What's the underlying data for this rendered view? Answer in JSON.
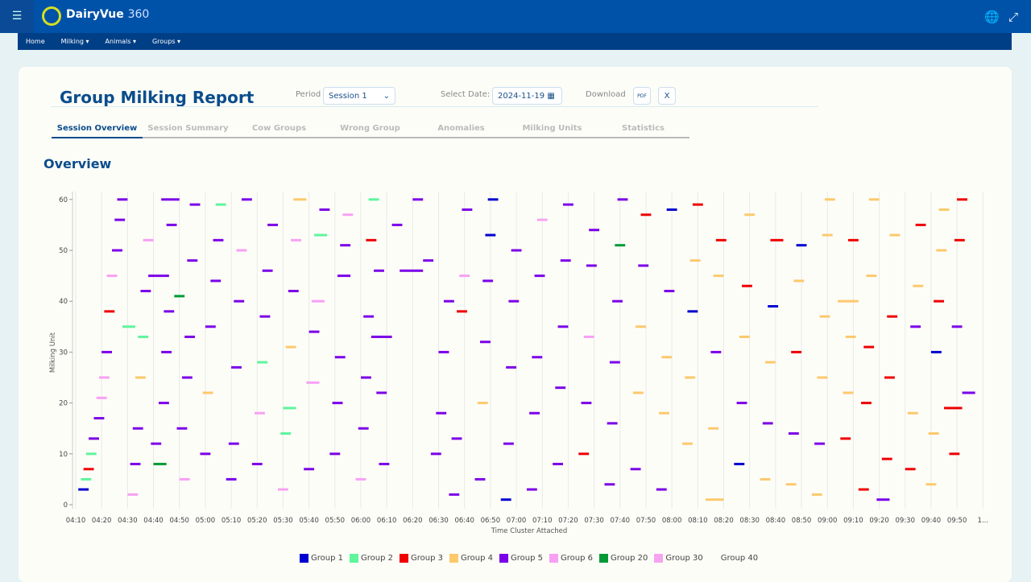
{
  "app": {
    "name": "DairyVue",
    "version": "360"
  },
  "nav": [
    "Home",
    "Milking ▾",
    "Animals ▾",
    "Groups ▾"
  ],
  "page": {
    "title": "Group Milking Report",
    "period_label": "Period",
    "period_value": "Session 1",
    "date_label": "Select Date:",
    "date_value": "2024-11-19",
    "download_label": "Download",
    "pdf": "PDF",
    "excel": "X"
  },
  "tabs": [
    "Session Overview",
    "Session Summary",
    "Cow Groups",
    "Wrong Group",
    "Anomalies",
    "Milking Units",
    "Statistics"
  ],
  "section": "Overview",
  "chart_data": {
    "type": "bar",
    "subtype": "gantt",
    "xlabel": "Time Cluster Attached",
    "ylabel": "Milking Unit",
    "xlim": [
      "04:10",
      "10:00"
    ],
    "ylim": [
      0,
      62
    ],
    "xticks": [
      "04:10",
      "04:20",
      "04:30",
      "04:40",
      "04:50",
      "05:00",
      "05:10",
      "05:20",
      "05:30",
      "05:40",
      "05:50",
      "06:00",
      "06:10",
      "06:20",
      "06:30",
      "06:40",
      "06:50",
      "07:00",
      "07:10",
      "07:20",
      "07:30",
      "07:40",
      "07:50",
      "08:00",
      "08:10",
      "08:20",
      "08:30",
      "08:40",
      "08:50",
      "09:00",
      "09:10",
      "09:20",
      "09:30",
      "09:40",
      "09:50",
      "1..."
    ],
    "yticks": [
      0,
      10,
      20,
      30,
      40,
      50,
      60
    ],
    "grid": "vertical",
    "legend_position": "bottom",
    "groups": [
      {
        "name": "Group 1",
        "color": "#0000d0"
      },
      {
        "name": "Group 2",
        "color": "#5ef59c"
      },
      {
        "name": "Group 3",
        "color": "#ee0000"
      },
      {
        "name": "Group 4",
        "color": "#fcc96c"
      },
      {
        "name": "Group 5",
        "color": "#7b00e8"
      },
      {
        "name": "Group 6",
        "color": "#f8a0f4"
      },
      {
        "name": "Group 20",
        "color": "#009a35"
      },
      {
        "name": "Group 30",
        "color": "#f6a4f0"
      },
      {
        "name": "Group 40",
        "color": ""
      }
    ],
    "segments_format": [
      "start",
      "end",
      "unit",
      "group_index"
    ],
    "segments": [
      [
        "04:11",
        "04:15",
        3,
        0
      ],
      [
        "04:12",
        "04:16",
        5,
        1
      ],
      [
        "04:13",
        "04:17",
        7,
        2
      ],
      [
        "04:14",
        "04:18",
        10,
        1
      ],
      [
        "04:15",
        "04:19",
        13,
        4
      ],
      [
        "04:17",
        "04:21",
        17,
        4
      ],
      [
        "04:18",
        "04:22",
        21,
        5
      ],
      [
        "04:19",
        "04:23",
        25,
        5
      ],
      [
        "04:20",
        "04:24",
        30,
        4
      ],
      [
        "04:21",
        "04:25",
        38,
        2
      ],
      [
        "04:22",
        "04:26",
        45,
        5
      ],
      [
        "04:24",
        "04:28",
        50,
        4
      ],
      [
        "04:25",
        "04:29",
        56,
        4
      ],
      [
        "04:26",
        "04:30",
        60,
        4
      ],
      [
        "04:28",
        "04:33",
        35,
        1
      ],
      [
        "04:30",
        "04:34",
        2,
        5
      ],
      [
        "04:31",
        "04:35",
        8,
        4
      ],
      [
        "04:32",
        "04:36",
        15,
        4
      ],
      [
        "04:33",
        "04:37",
        25,
        3
      ],
      [
        "04:34",
        "04:38",
        33,
        1
      ],
      [
        "04:35",
        "04:39",
        42,
        4
      ],
      [
        "04:36",
        "04:40",
        52,
        5
      ],
      [
        "04:38",
        "04:46",
        45,
        4
      ],
      [
        "04:39",
        "04:43",
        12,
        4
      ],
      [
        "04:40",
        "04:45",
        8,
        6
      ],
      [
        "04:42",
        "04:46",
        20,
        4
      ],
      [
        "04:43",
        "04:47",
        30,
        4
      ],
      [
        "04:44",
        "04:48",
        38,
        4
      ],
      [
        "04:45",
        "04:49",
        55,
        4
      ],
      [
        "04:43",
        "04:50",
        60,
        4
      ],
      [
        "04:48",
        "04:52",
        41,
        6
      ],
      [
        "04:49",
        "04:53",
        15,
        4
      ],
      [
        "04:50",
        "04:54",
        5,
        5
      ],
      [
        "04:51",
        "04:55",
        25,
        4
      ],
      [
        "04:52",
        "04:56",
        33,
        4
      ],
      [
        "04:53",
        "04:57",
        48,
        4
      ],
      [
        "04:54",
        "04:58",
        59,
        4
      ],
      [
        "04:58",
        "05:02",
        10,
        4
      ],
      [
        "04:59",
        "05:03",
        22,
        3
      ],
      [
        "05:00",
        "05:04",
        35,
        4
      ],
      [
        "05:02",
        "05:06",
        44,
        4
      ],
      [
        "05:03",
        "05:07",
        52,
        4
      ],
      [
        "05:04",
        "05:08",
        59,
        1
      ],
      [
        "05:08",
        "05:12",
        5,
        4
      ],
      [
        "05:09",
        "05:13",
        12,
        4
      ],
      [
        "05:10",
        "05:14",
        27,
        4
      ],
      [
        "05:11",
        "05:15",
        40,
        4
      ],
      [
        "05:12",
        "05:16",
        50,
        5
      ],
      [
        "05:14",
        "05:18",
        60,
        4
      ],
      [
        "05:18",
        "05:22",
        8,
        4
      ],
      [
        "05:19",
        "05:23",
        18,
        5
      ],
      [
        "05:20",
        "05:24",
        28,
        1
      ],
      [
        "05:21",
        "05:25",
        37,
        4
      ],
      [
        "05:22",
        "05:26",
        46,
        4
      ],
      [
        "05:24",
        "05:28",
        55,
        4
      ],
      [
        "05:28",
        "05:32",
        3,
        5
      ],
      [
        "05:29",
        "05:33",
        14,
        1
      ],
      [
        "05:30",
        "05:35",
        19,
        1
      ],
      [
        "05:31",
        "05:35",
        31,
        3
      ],
      [
        "05:32",
        "05:36",
        42,
        4
      ],
      [
        "05:33",
        "05:37",
        52,
        5
      ],
      [
        "05:34",
        "05:39",
        60,
        3
      ],
      [
        "05:38",
        "05:42",
        7,
        4
      ],
      [
        "05:39",
        "05:44",
        24,
        5
      ],
      [
        "05:40",
        "05:44",
        34,
        4
      ],
      [
        "05:41",
        "05:46",
        40,
        5
      ],
      [
        "05:42",
        "05:47",
        53,
        1
      ],
      [
        "05:44",
        "05:48",
        58,
        4
      ],
      [
        "05:48",
        "05:52",
        10,
        4
      ],
      [
        "05:49",
        "05:53",
        20,
        4
      ],
      [
        "05:50",
        "05:54",
        29,
        4
      ],
      [
        "05:51",
        "05:56",
        45,
        4
      ],
      [
        "05:52",
        "05:56",
        51,
        4
      ],
      [
        "05:53",
        "05:57",
        57,
        5
      ],
      [
        "05:58",
        "06:02",
        5,
        5
      ],
      [
        "05:59",
        "06:03",
        15,
        4
      ],
      [
        "06:00",
        "06:04",
        25,
        4
      ],
      [
        "06:01",
        "06:05",
        37,
        4
      ],
      [
        "06:02",
        "06:06",
        52,
        2
      ],
      [
        "06:03",
        "06:07",
        60,
        1
      ],
      [
        "06:04",
        "06:12",
        33,
        4
      ],
      [
        "06:05",
        "06:09",
        46,
        4
      ],
      [
        "06:06",
        "06:10",
        22,
        4
      ],
      [
        "06:07",
        "06:11",
        8,
        4
      ],
      [
        "06:12",
        "06:16",
        55,
        4
      ],
      [
        "06:15",
        "06:24",
        46,
        4
      ],
      [
        "06:20",
        "06:24",
        60,
        4
      ],
      [
        "06:24",
        "06:28",
        48,
        4
      ],
      [
        "06:27",
        "06:31",
        10,
        4
      ],
      [
        "06:29",
        "06:33",
        18,
        4
      ],
      [
        "06:30",
        "06:34",
        30,
        4
      ],
      [
        "06:32",
        "06:36",
        40,
        4
      ],
      [
        "06:34",
        "06:38",
        2,
        4
      ],
      [
        "06:35",
        "06:39",
        13,
        4
      ],
      [
        "06:37",
        "06:41",
        38,
        2
      ],
      [
        "06:38",
        "06:42",
        45,
        5
      ],
      [
        "06:39",
        "06:43",
        58,
        4
      ],
      [
        "06:44",
        "06:48",
        5,
        4
      ],
      [
        "06:45",
        "06:49",
        20,
        3
      ],
      [
        "06:46",
        "06:50",
        32,
        4
      ],
      [
        "06:47",
        "06:51",
        44,
        4
      ],
      [
        "06:48",
        "06:52",
        53,
        0
      ],
      [
        "06:49",
        "06:53",
        60,
        0
      ],
      [
        "06:54",
        "06:58",
        1,
        0
      ],
      [
        "06:55",
        "06:59",
        12,
        4
      ],
      [
        "06:56",
        "07:00",
        27,
        4
      ],
      [
        "06:57",
        "07:01",
        40,
        4
      ],
      [
        "06:58",
        "07:02",
        50,
        4
      ],
      [
        "07:04",
        "07:08",
        3,
        4
      ],
      [
        "07:05",
        "07:09",
        18,
        4
      ],
      [
        "07:06",
        "07:10",
        29,
        4
      ],
      [
        "07:07",
        "07:11",
        45,
        4
      ],
      [
        "07:08",
        "07:12",
        56,
        7
      ],
      [
        "07:14",
        "07:18",
        8,
        4
      ],
      [
        "07:15",
        "07:19",
        23,
        4
      ],
      [
        "07:16",
        "07:20",
        35,
        4
      ],
      [
        "07:17",
        "07:21",
        48,
        4
      ],
      [
        "07:18",
        "07:22",
        59,
        4
      ],
      [
        "07:24",
        "07:28",
        10,
        2
      ],
      [
        "07:25",
        "07:29",
        20,
        4
      ],
      [
        "07:26",
        "07:30",
        33,
        5
      ],
      [
        "07:27",
        "07:31",
        47,
        4
      ],
      [
        "07:28",
        "07:32",
        54,
        4
      ],
      [
        "07:34",
        "07:38",
        4,
        4
      ],
      [
        "07:35",
        "07:39",
        16,
        4
      ],
      [
        "07:36",
        "07:40",
        28,
        4
      ],
      [
        "07:37",
        "07:41",
        40,
        4
      ],
      [
        "07:38",
        "07:42",
        51,
        6
      ],
      [
        "07:39",
        "07:43",
        60,
        4
      ],
      [
        "07:44",
        "07:48",
        7,
        4
      ],
      [
        "07:45",
        "07:49",
        22,
        3
      ],
      [
        "07:46",
        "07:50",
        35,
        3
      ],
      [
        "07:47",
        "07:51",
        47,
        4
      ],
      [
        "07:48",
        "07:52",
        57,
        2
      ],
      [
        "07:54",
        "07:58",
        3,
        4
      ],
      [
        "07:55",
        "07:59",
        18,
        3
      ],
      [
        "07:56",
        "08:00",
        29,
        3
      ],
      [
        "07:57",
        "08:01",
        42,
        4
      ],
      [
        "07:58",
        "08:02",
        58,
        0
      ],
      [
        "08:04",
        "08:08",
        12,
        3
      ],
      [
        "08:05",
        "08:09",
        25,
        3
      ],
      [
        "08:06",
        "08:10",
        38,
        0
      ],
      [
        "08:07",
        "08:11",
        48,
        3
      ],
      [
        "08:08",
        "08:12",
        59,
        2
      ],
      [
        "08:13",
        "08:20",
        1,
        3
      ],
      [
        "08:14",
        "08:18",
        15,
        3
      ],
      [
        "08:15",
        "08:19",
        30,
        4
      ],
      [
        "08:16",
        "08:20",
        45,
        3
      ],
      [
        "08:17",
        "08:21",
        52,
        2
      ],
      [
        "08:24",
        "08:28",
        8,
        0
      ],
      [
        "08:25",
        "08:29",
        20,
        4
      ],
      [
        "08:26",
        "08:30",
        33,
        3
      ],
      [
        "08:27",
        "08:31",
        43,
        2
      ],
      [
        "08:28",
        "08:32",
        57,
        3
      ],
      [
        "08:34",
        "08:38",
        5,
        3
      ],
      [
        "08:35",
        "08:39",
        16,
        4
      ],
      [
        "08:36",
        "08:40",
        28,
        3
      ],
      [
        "08:37",
        "08:41",
        39,
        0
      ],
      [
        "08:38",
        "08:43",
        52,
        2
      ],
      [
        "08:44",
        "08:48",
        4,
        3
      ],
      [
        "08:45",
        "08:49",
        14,
        4
      ],
      [
        "08:46",
        "08:50",
        30,
        2
      ],
      [
        "08:47",
        "08:51",
        44,
        3
      ],
      [
        "08:48",
        "08:52",
        51,
        0
      ],
      [
        "08:54",
        "08:58",
        2,
        3
      ],
      [
        "08:55",
        "08:59",
        12,
        4
      ],
      [
        "08:56",
        "09:00",
        25,
        3
      ],
      [
        "08:57",
        "09:01",
        37,
        3
      ],
      [
        "08:58",
        "09:02",
        53,
        3
      ],
      [
        "08:59",
        "09:03",
        60,
        3
      ],
      [
        "09:04",
        "09:12",
        40,
        3
      ],
      [
        "09:05",
        "09:09",
        13,
        2
      ],
      [
        "09:06",
        "09:10",
        22,
        3
      ],
      [
        "09:07",
        "09:11",
        33,
        3
      ],
      [
        "09:08",
        "09:12",
        52,
        2
      ],
      [
        "09:12",
        "09:16",
        3,
        2
      ],
      [
        "09:13",
        "09:17",
        20,
        2
      ],
      [
        "09:14",
        "09:18",
        31,
        2
      ],
      [
        "09:15",
        "09:19",
        45,
        3
      ],
      [
        "09:16",
        "09:20",
        60,
        3
      ],
      [
        "09:19",
        "09:24",
        1,
        4
      ],
      [
        "09:21",
        "09:25",
        9,
        2
      ],
      [
        "09:22",
        "09:26",
        25,
        2
      ],
      [
        "09:23",
        "09:27",
        37,
        2
      ],
      [
        "09:24",
        "09:28",
        53,
        3
      ],
      [
        "09:30",
        "09:34",
        7,
        2
      ],
      [
        "09:31",
        "09:35",
        18,
        3
      ],
      [
        "09:32",
        "09:36",
        35,
        4
      ],
      [
        "09:33",
        "09:37",
        43,
        3
      ],
      [
        "09:34",
        "09:38",
        55,
        2
      ],
      [
        "09:38",
        "09:42",
        4,
        3
      ],
      [
        "09:39",
        "09:43",
        14,
        3
      ],
      [
        "09:40",
        "09:44",
        30,
        0
      ],
      [
        "09:41",
        "09:45",
        40,
        2
      ],
      [
        "09:42",
        "09:46",
        50,
        3
      ],
      [
        "09:43",
        "09:47",
        58,
        3
      ],
      [
        "09:45",
        "09:52",
        19,
        2
      ],
      [
        "09:47",
        "09:51",
        10,
        2
      ],
      [
        "09:48",
        "09:52",
        35,
        4
      ],
      [
        "09:49",
        "09:53",
        52,
        2
      ],
      [
        "09:50",
        "09:54",
        60,
        2
      ],
      [
        "09:52",
        "09:57",
        22,
        4
      ]
    ]
  }
}
